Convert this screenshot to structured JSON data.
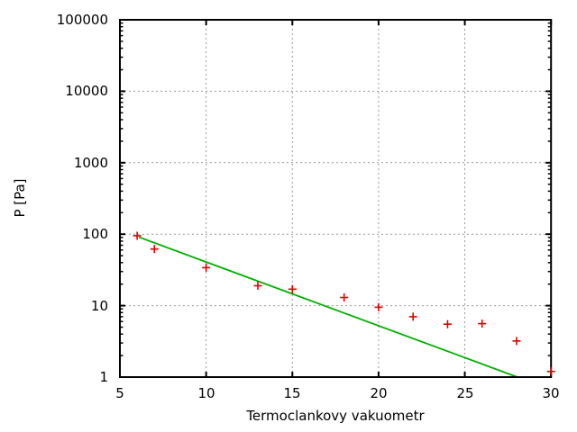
{
  "chart_data": {
    "type": "scatter",
    "title": "",
    "xlabel": "Termoclankovy vakuometr",
    "ylabel": "P [Pa]",
    "xscale": "linear",
    "yscale": "log",
    "xlim": [
      5,
      30
    ],
    "ylim": [
      1,
      100000
    ],
    "grid": true,
    "xticks": [
      5,
      10,
      15,
      20,
      25,
      30
    ],
    "xtick_labels": [
      "5",
      "10",
      "15",
      "20",
      "25",
      "30"
    ],
    "yticks": [
      1,
      10,
      100,
      1000,
      10000,
      100000
    ],
    "ytick_labels": [
      "1",
      "10",
      "100",
      "1000",
      "10000",
      "100000"
    ],
    "points": {
      "marker": "plus",
      "color": "#e00000",
      "x": [
        6,
        7,
        10,
        13,
        15,
        18,
        20,
        22,
        24,
        26,
        28,
        30
      ],
      "y": [
        95,
        62,
        34,
        19,
        17,
        13,
        9.5,
        7,
        5.5,
        5.6,
        3.2,
        1.2
      ]
    },
    "fit_line": {
      "color": "#00b000",
      "x": [
        6.1,
        28.05
      ],
      "y": [
        91,
        1
      ]
    },
    "grid_color": "#999999",
    "axis_color": "#000000",
    "legend": "none"
  }
}
